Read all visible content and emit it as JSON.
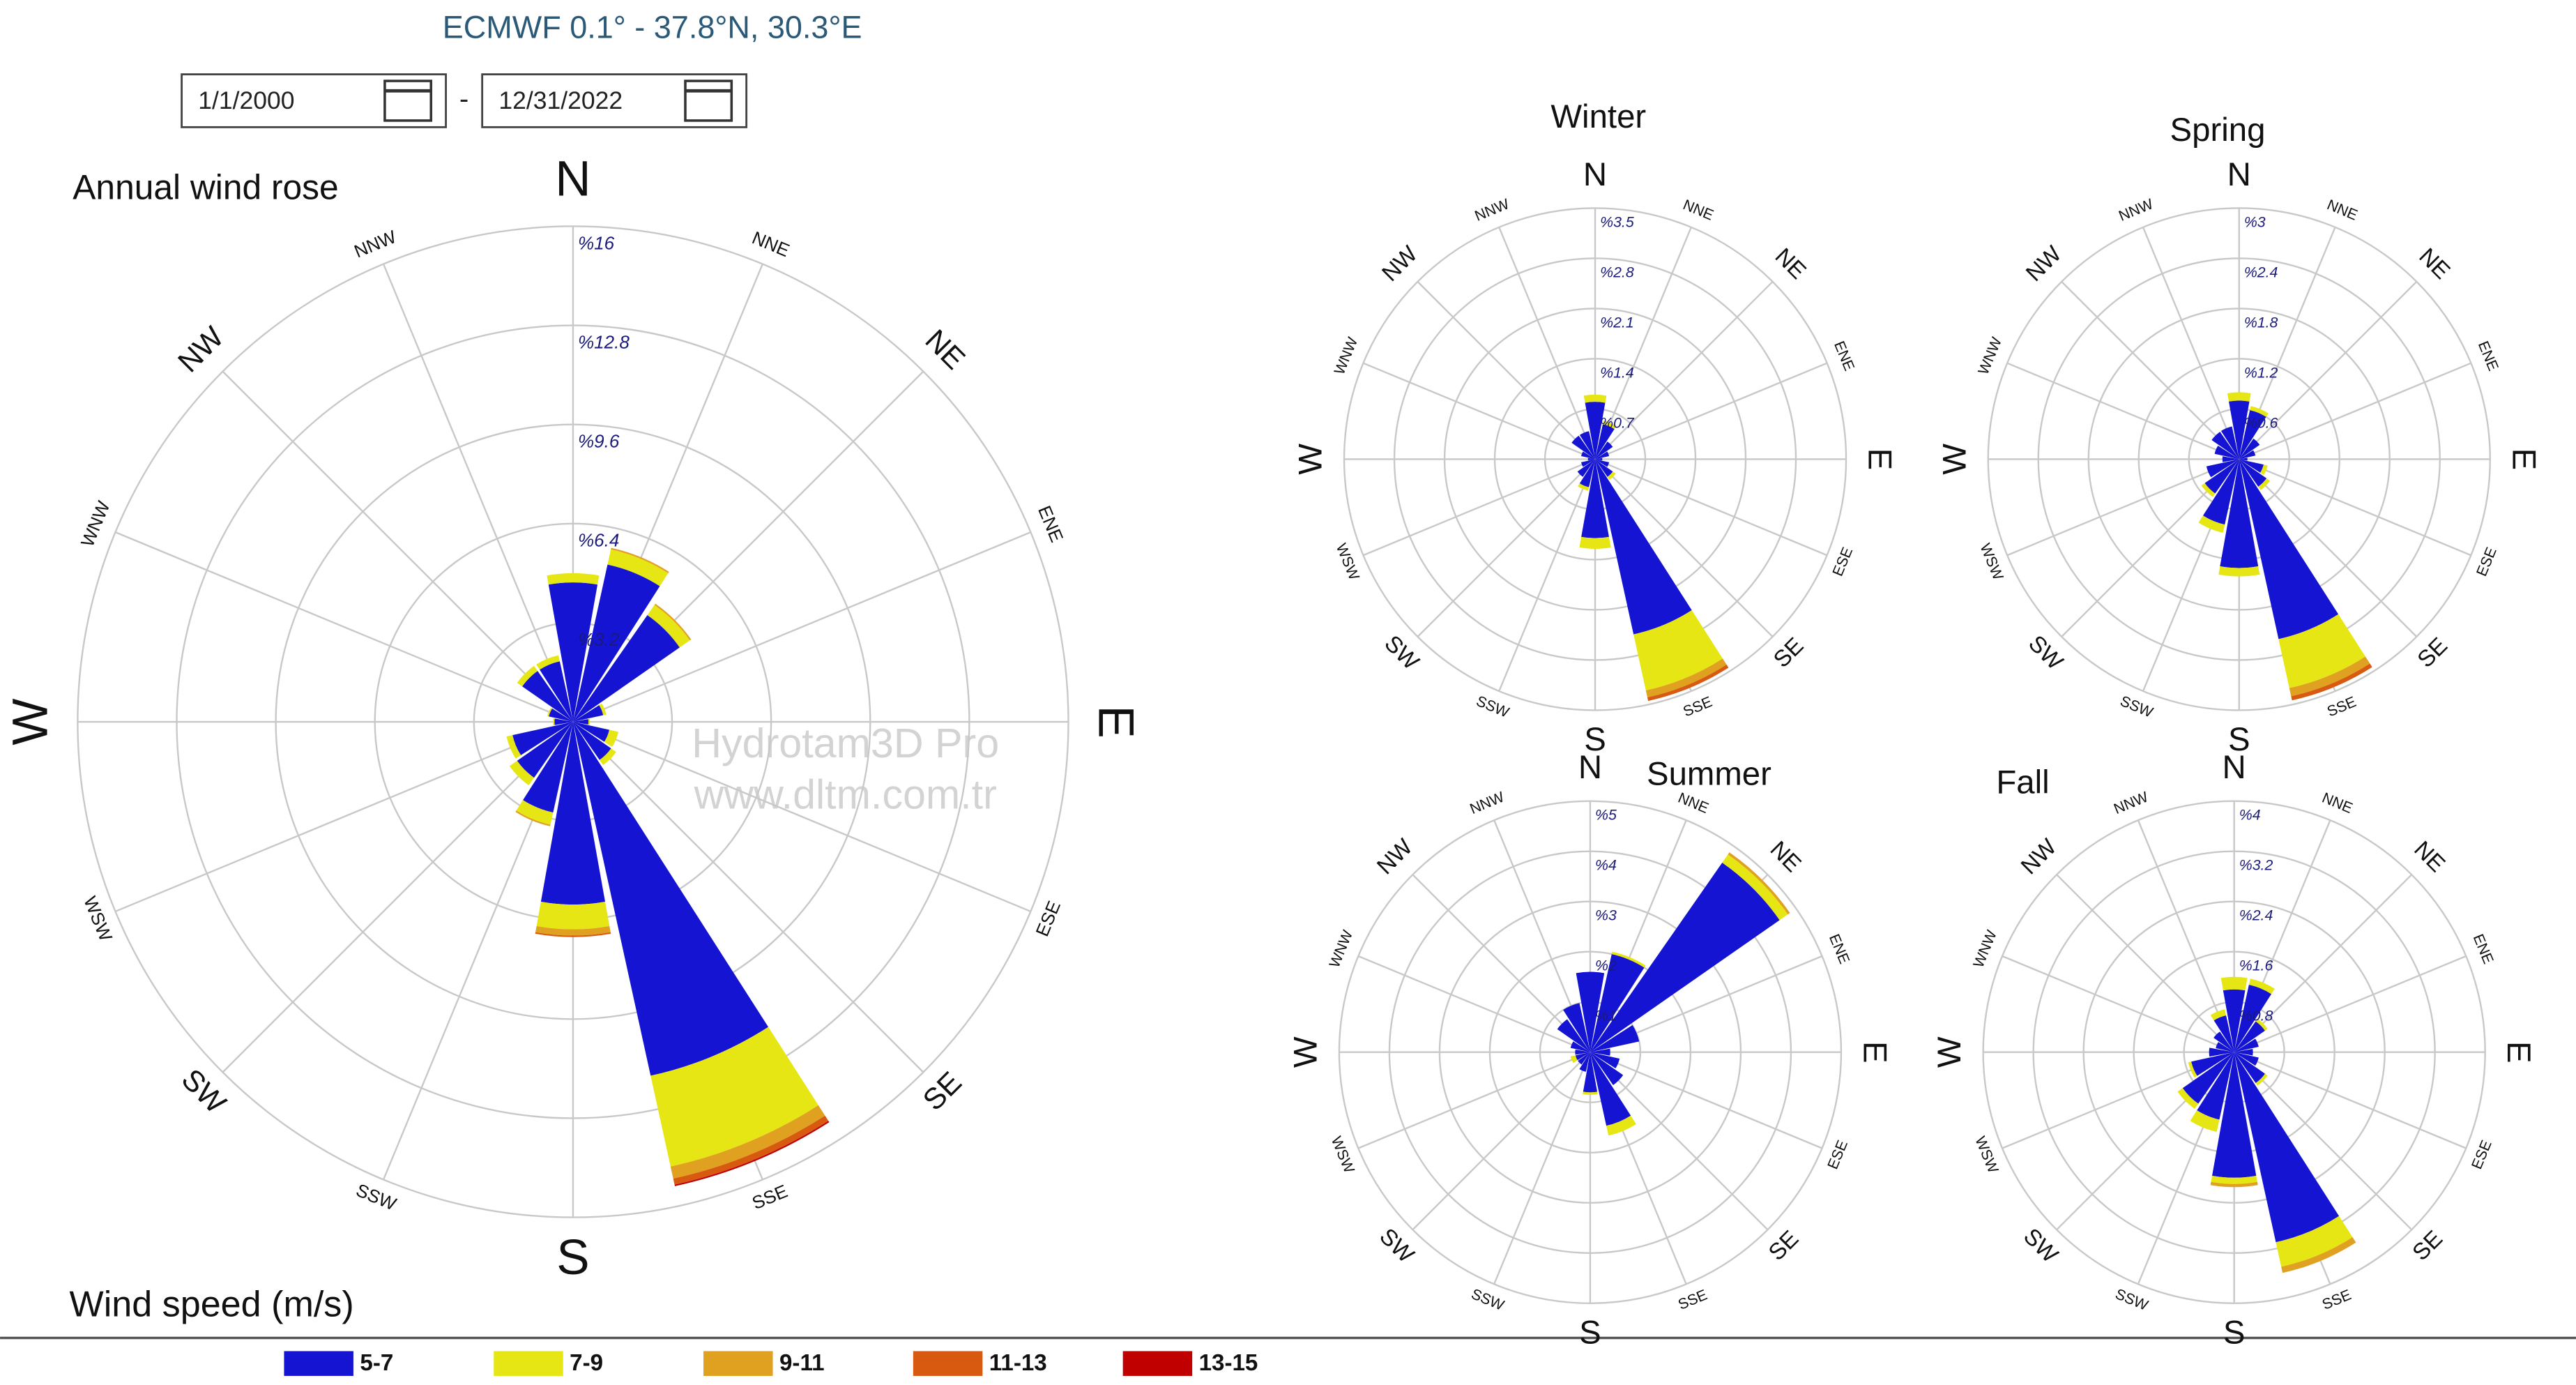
{
  "header": {
    "title": "ECMWF 0.1° - 37.8°N, 30.3°E",
    "start_date": "1/1/2000",
    "date_separator": "-",
    "end_date": "12/31/2022"
  },
  "watermark": [
    "Hydrotam3D Pro",
    "www.dltm.com.tr"
  ],
  "legend": {
    "title": "Wind speed (m/s)",
    "items": [
      {
        "name": "5-7",
        "color": "#1414d2"
      },
      {
        "name": "7-9",
        "color": "#e6e614"
      },
      {
        "name": "9-11",
        "color": "#e0a020"
      },
      {
        "name": "11-13",
        "color": "#d85a10"
      },
      {
        "name": "13-15",
        "color": "#c00000"
      }
    ]
  },
  "chart_data": [
    {
      "type": "wind_rose",
      "title": "Annual wind rose",
      "categories": [
        "N",
        "NNE",
        "NE",
        "ENE",
        "E",
        "ESE",
        "SE",
        "SSE",
        "S",
        "SSW",
        "SW",
        "WSW",
        "W",
        "WNW",
        "NW",
        "NNW"
      ],
      "rlim": [
        0,
        16
      ],
      "rticks": [
        {
          "value": 3.2,
          "label": "%3.2"
        },
        {
          "value": 6.4,
          "label": "%6.4"
        },
        {
          "value": 9.6,
          "label": "%9.6"
        },
        {
          "value": 12.8,
          "label": "%12.8"
        },
        {
          "value": 16,
          "label": "%16"
        }
      ],
      "series": [
        {
          "values": [
            4.5,
            5.2,
            4.2,
            1.0,
            0.5,
            1.2,
            1.5,
            11.7,
            5.9,
            3.0,
            2.2,
            2.0,
            0.6,
            0.8,
            2.0,
            2.0
          ]
        },
        {
          "values": [
            0.3,
            0.5,
            0.4,
            0.1,
            0.05,
            0.3,
            0.2,
            3.0,
            0.8,
            0.4,
            0.3,
            0.2,
            0.05,
            0.05,
            0.2,
            0.2
          ]
        },
        {
          "values": [
            0,
            0.05,
            0.05,
            0,
            0,
            0,
            0,
            0.4,
            0.2,
            0.05,
            0,
            0,
            0,
            0,
            0,
            0
          ]
        },
        {
          "values": [
            0,
            0,
            0,
            0,
            0,
            0,
            0,
            0.2,
            0.05,
            0,
            0,
            0,
            0,
            0,
            0,
            0
          ]
        },
        {
          "values": [
            0,
            0,
            0,
            0,
            0,
            0,
            0,
            0.05,
            0,
            0,
            0,
            0,
            0,
            0,
            0,
            0
          ]
        }
      ]
    },
    {
      "type": "wind_rose",
      "title": "Winter",
      "categories": [
        "N",
        "NNE",
        "NE",
        "ENE",
        "E",
        "ESE",
        "SE",
        "SSE",
        "S",
        "SSW",
        "SW",
        "WSW",
        "W",
        "WNW",
        "NW",
        "NNW"
      ],
      "rlim": [
        0,
        3.5
      ],
      "rticks": [
        {
          "value": 0.7,
          "label": "%0.7"
        },
        {
          "value": 1.4,
          "label": "%1.4"
        },
        {
          "value": 2.1,
          "label": "%2.1"
        },
        {
          "value": 2.8,
          "label": "%2.8"
        },
        {
          "value": 3.5,
          "label": "%3.5"
        }
      ],
      "series": [
        {
          "values": [
            0.8,
            0.5,
            0.3,
            0.2,
            0.1,
            0.2,
            0.3,
            2.5,
            1.1,
            0.4,
            0.3,
            0.2,
            0.1,
            0.2,
            0.4,
            0.4
          ]
        },
        {
          "values": [
            0.1,
            0.05,
            0,
            0,
            0,
            0,
            0.05,
            0.8,
            0.15,
            0.05,
            0,
            0,
            0,
            0,
            0,
            0
          ]
        },
        {
          "values": [
            0,
            0,
            0,
            0,
            0,
            0,
            0,
            0.1,
            0,
            0,
            0,
            0,
            0,
            0,
            0,
            0
          ]
        },
        {
          "values": [
            0,
            0,
            0,
            0,
            0,
            0,
            0,
            0.05,
            0,
            0,
            0,
            0,
            0,
            0,
            0,
            0
          ]
        },
        {
          "values": [
            0,
            0,
            0,
            0,
            0,
            0,
            0,
            0,
            0,
            0,
            0,
            0,
            0,
            0,
            0,
            0
          ]
        }
      ]
    },
    {
      "type": "wind_rose",
      "title": "Spring",
      "categories": [
        "N",
        "NNE",
        "NE",
        "ENE",
        "E",
        "ESE",
        "SE",
        "SSE",
        "S",
        "SSW",
        "SW",
        "WSW",
        "W",
        "WNW",
        "NW",
        "NNW"
      ],
      "rlim": [
        0,
        3
      ],
      "rticks": [
        {
          "value": 0.6,
          "label": "%0.6"
        },
        {
          "value": 1.2,
          "label": "%1.2"
        },
        {
          "value": 1.8,
          "label": "%1.8"
        },
        {
          "value": 2.4,
          "label": "%2.4"
        },
        {
          "value": 3,
          "label": "%3"
        }
      ],
      "series": [
        {
          "values": [
            0.7,
            0.6,
            0.3,
            0.2,
            0.1,
            0.3,
            0.4,
            2.2,
            1.3,
            0.8,
            0.5,
            0.4,
            0.2,
            0.3,
            0.4,
            0.4
          ]
        },
        {
          "values": [
            0.1,
            0.05,
            0,
            0,
            0,
            0.05,
            0.05,
            0.6,
            0.1,
            0.1,
            0.05,
            0,
            0,
            0,
            0,
            0
          ]
        },
        {
          "values": [
            0,
            0,
            0,
            0,
            0,
            0,
            0,
            0.1,
            0,
            0,
            0,
            0,
            0,
            0,
            0,
            0
          ]
        },
        {
          "values": [
            0,
            0,
            0,
            0,
            0,
            0,
            0,
            0.05,
            0,
            0,
            0,
            0,
            0,
            0,
            0,
            0
          ]
        },
        {
          "values": [
            0,
            0,
            0,
            0,
            0,
            0,
            0,
            0,
            0,
            0,
            0,
            0,
            0,
            0,
            0,
            0
          ]
        }
      ]
    },
    {
      "type": "wind_rose",
      "title": "Summer",
      "categories": [
        "N",
        "NNE",
        "NE",
        "ENE",
        "E",
        "ESE",
        "SE",
        "SSE",
        "S",
        "SSW",
        "SW",
        "WSW",
        "W",
        "WNW",
        "NW",
        "NNW"
      ],
      "rlim": [
        0,
        5
      ],
      "rticks": [
        {
          "value": 1,
          "label": "%1"
        },
        {
          "value": 2,
          "label": "%2"
        },
        {
          "value": 3,
          "label": "%3"
        },
        {
          "value": 4,
          "label": "%4"
        },
        {
          "value": 5,
          "label": "%5"
        }
      ],
      "series": [
        {
          "values": [
            1.6,
            2.0,
            4.6,
            1.0,
            0.4,
            0.6,
            0.8,
            1.5,
            0.8,
            0.4,
            0.3,
            0.3,
            0.3,
            0.4,
            0.8,
            1.0
          ]
        },
        {
          "values": [
            0,
            0.05,
            0.2,
            0,
            0,
            0,
            0,
            0.2,
            0.05,
            0,
            0,
            0.1,
            0,
            0,
            0,
            0
          ]
        },
        {
          "values": [
            0,
            0,
            0.05,
            0,
            0,
            0,
            0,
            0,
            0,
            0,
            0,
            0,
            0,
            0,
            0,
            0
          ]
        },
        {
          "values": [
            0,
            0,
            0,
            0,
            0,
            0,
            0,
            0,
            0,
            0,
            0,
            0,
            0,
            0,
            0,
            0
          ]
        },
        {
          "values": [
            0,
            0,
            0,
            0,
            0,
            0,
            0,
            0,
            0,
            0,
            0,
            0,
            0,
            0,
            0,
            0
          ]
        }
      ]
    },
    {
      "type": "wind_rose",
      "title": "Fall",
      "categories": [
        "N",
        "NNE",
        "NE",
        "ENE",
        "E",
        "ESE",
        "SE",
        "SSE",
        "S",
        "SSW",
        "SW",
        "WSW",
        "W",
        "WNW",
        "NW",
        "NNW"
      ],
      "rlim": [
        0,
        4
      ],
      "rticks": [
        {
          "value": 0.8,
          "label": "%0.8"
        },
        {
          "value": 1.6,
          "label": "%1.6"
        },
        {
          "value": 2.4,
          "label": "%2.4"
        },
        {
          "value": 3.2,
          "label": "%3.2"
        },
        {
          "value": 4,
          "label": "%4"
        }
      ],
      "series": [
        {
          "values": [
            1.0,
            1.1,
            0.6,
            0.4,
            0.3,
            0.4,
            0.6,
            3.1,
            2.0,
            1.1,
            1.0,
            0.7,
            0.4,
            0.3,
            0.4,
            0.6
          ]
        },
        {
          "values": [
            0.2,
            0.1,
            0.05,
            0,
            0,
            0,
            0.05,
            0.4,
            0.1,
            0.2,
            0.1,
            0.05,
            0,
            0,
            0,
            0.1
          ]
        },
        {
          "values": [
            0,
            0,
            0,
            0,
            0,
            0,
            0,
            0.1,
            0.05,
            0,
            0,
            0,
            0,
            0,
            0,
            0
          ]
        },
        {
          "values": [
            0,
            0,
            0,
            0,
            0,
            0,
            0,
            0,
            0,
            0,
            0,
            0,
            0,
            0,
            0,
            0
          ]
        },
        {
          "values": [
            0,
            0,
            0,
            0,
            0,
            0,
            0,
            0,
            0,
            0,
            0,
            0,
            0,
            0,
            0,
            0
          ]
        }
      ]
    }
  ]
}
